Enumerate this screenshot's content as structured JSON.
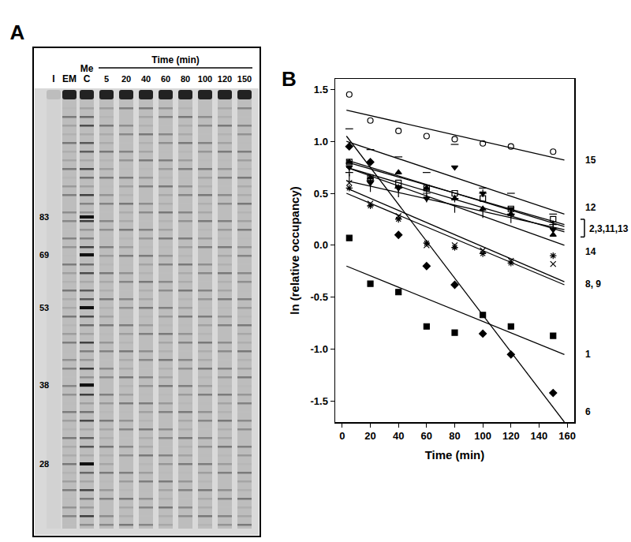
{
  "chart_data": {
    "type": "scatter",
    "label": "B",
    "x_label": "Time (min)",
    "y_label": "ln (relative occupancy)",
    "x": [
      5,
      20,
      40,
      60,
      80,
      100,
      120,
      150
    ],
    "xlim": [
      -5,
      165
    ],
    "xticks": [
      0,
      20,
      40,
      60,
      80,
      100,
      120,
      140,
      160
    ],
    "ylim": [
      -1.7,
      1.6
    ],
    "yticks": [
      -1.5,
      {
        "value": -1.0,
        "label": "-1.0"
      },
      -0.5,
      {
        "value": 0.0,
        "label": "0.0"
      },
      0.5,
      {
        "value": 1.0,
        "label": "1.0"
      },
      1.5
    ],
    "fit_x": [
      3,
      158
    ],
    "series": [
      {
        "marker": "circle-open",
        "color": "#000000",
        "values": [
          1.45,
          1.2,
          1.1,
          1.05,
          1.02,
          0.98,
          0.95,
          0.9
        ],
        "fit": [
          1.3,
          0.82
        ]
      },
      {
        "marker": "line-ew-open",
        "color": "#000000",
        "values": [
          1.12,
          0.92,
          0.85,
          0.7,
          0.97,
          0.55,
          0.5,
          0.3
        ],
        "fit": [
          1.0,
          0.3
        ]
      },
      {
        "marker": "square-open",
        "color": "#000000",
        "values": [
          0.8,
          0.65,
          0.6,
          0.55,
          0.5,
          0.45,
          0.35,
          0.25
        ],
        "fit": [
          0.8,
          0.2
        ]
      },
      {
        "marker": "cross-thin-open",
        "color": "#000000",
        "values": [
          0.7,
          0.62,
          0.55,
          0.5,
          0.45,
          0.5,
          0.3,
          0.2
        ],
        "fit": [
          0.75,
          0.13
        ]
      },
      {
        "marker": "triangle-down",
        "color": "#000000",
        "values": [
          0.75,
          0.6,
          0.55,
          0.45,
          0.75,
          0.5,
          0.35,
          0.15
        ],
        "fit": [
          0.82,
          0.18
        ]
      },
      {
        "marker": "line-ns-open",
        "color": "#000000",
        "values": [
          0.65,
          0.55,
          0.5,
          0.45,
          0.35,
          0.3,
          0.25,
          0.2
        ],
        "fit": [
          0.62,
          0.15
        ]
      },
      {
        "marker": "triangle-up",
        "color": "#000000",
        "values": [
          0.8,
          0.65,
          0.7,
          0.55,
          0.45,
          0.35,
          0.3,
          0.1
        ],
        "fit": [
          0.75,
          0.0
        ]
      },
      {
        "marker": "x-thin-open",
        "color": "#000000",
        "values": [
          0.6,
          0.4,
          0.28,
          0.0,
          0.0,
          -0.05,
          -0.15,
          -0.18
        ],
        "fit": [
          0.55,
          -0.35
        ]
      },
      {
        "marker": "asterisk-open",
        "color": "#000000",
        "values": [
          0.55,
          0.38,
          0.25,
          0.02,
          -0.02,
          -0.08,
          -0.17,
          -0.1
        ],
        "fit": [
          0.5,
          -0.38
        ]
      },
      {
        "marker": "square",
        "color": "#000000",
        "values": [
          0.07,
          -0.37,
          -0.45,
          -0.78,
          -0.84,
          -0.67,
          -0.78,
          -0.87
        ],
        "fit": [
          -0.2,
          -1.05
        ]
      },
      {
        "marker": "diamond",
        "color": "#000000",
        "values": [
          0.95,
          0.8,
          0.1,
          -0.2,
          -0.38,
          -0.85,
          -1.05,
          -1.42
        ],
        "fit": [
          1.05,
          -1.7
        ]
      }
    ],
    "line_labels": [
      {
        "text": "15",
        "y": 0.82
      },
      {
        "text": "12",
        "y": 0.36
      },
      {
        "text": "2,3,11,13",
        "y": 0.16,
        "bracket": [
          0.08,
          0.25
        ]
      },
      {
        "text": "14",
        "y": -0.06
      },
      {
        "text": "8, 9",
        "y": -0.37
      },
      {
        "text": "1",
        "y": -1.05
      },
      {
        "text": "6",
        "y": -1.6
      }
    ]
  },
  "gel": {
    "label": "A",
    "header": "Time (min)",
    "lanes": [
      {
        "lines": [
          "I"
        ]
      },
      {
        "lines": [
          "EM"
        ]
      },
      {
        "lines": [
          "Me",
          "C"
        ]
      }
    ],
    "times": [
      5,
      20,
      40,
      60,
      80,
      100,
      120,
      150
    ],
    "markers": [
      83,
      69,
      53,
      38,
      28
    ]
  }
}
